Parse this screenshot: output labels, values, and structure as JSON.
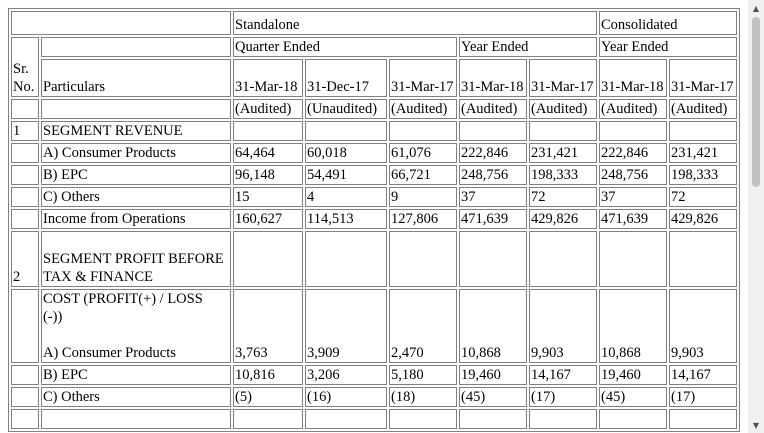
{
  "table": {
    "header": {
      "standalone": "Standalone",
      "consolidated": "Consolidated",
      "sr_line1": "Sr.",
      "sr_line2": "No.",
      "particulars": "Particulars",
      "quarter_ended": "Quarter Ended",
      "year_ended_standalone": "Year Ended",
      "year_ended_consolidated": "Year Ended",
      "dates": [
        "31-Mar-18",
        "31-Dec-17",
        "31-Mar-17",
        "31-Mar-18",
        "31-Mar-17",
        "31-Mar-18",
        "31-Mar-17"
      ],
      "audit": [
        "(Audited)",
        "(Unaudited)",
        "(Audited)",
        "(Audited)",
        "(Audited)",
        "(Audited)",
        "(Audited)"
      ]
    },
    "rows": [
      {
        "sr": "1",
        "particular": "SEGMENT REVENUE",
        "values": [
          "",
          "",
          "",
          "",
          "",
          "",
          ""
        ]
      },
      {
        "sr": "",
        "particular": "A) Consumer Products",
        "values": [
          "64,464",
          "60,018",
          "61,076",
          "222,846",
          "231,421",
          "222,846",
          "231,421"
        ]
      },
      {
        "sr": "",
        "particular": "B) EPC",
        "values": [
          "96,148",
          "54,491",
          "66,721",
          "248,756",
          "198,333",
          "248,756",
          "198,333"
        ]
      },
      {
        "sr": "",
        "particular": "C) Others",
        "values": [
          "15",
          "4",
          "9",
          "37",
          "72",
          "37",
          "72"
        ]
      },
      {
        "sr": "",
        "particular": "Income from Operations",
        "values": [
          "160,627",
          "114,513",
          "127,806",
          "471,639",
          "429,826",
          "471,639",
          "429,826"
        ]
      },
      {
        "sr": "2",
        "particular": "SEGMENT PROFIT BEFORE TAX & FINANCE",
        "values": [
          "",
          "",
          "",
          "",
          "",
          "",
          ""
        ]
      },
      {
        "sr": "",
        "particular": "COST (PROFIT(+) / LOSS (-))",
        "particular2": "A) Consumer Products",
        "values": [
          "3,763",
          "3,909",
          "2,470",
          "10,868",
          "9,903",
          "10,868",
          "9,903"
        ]
      },
      {
        "sr": "",
        "particular": "B) EPC",
        "values": [
          "10,816",
          "3,206",
          "5,180",
          "19,460",
          "14,167",
          "19,460",
          "14,167"
        ]
      },
      {
        "sr": "",
        "particular": "C) Others",
        "values": [
          "(5)",
          "(16)",
          "(18)",
          "(45)",
          "(17)",
          "(45)",
          "(17)"
        ]
      },
      {
        "sr": "",
        "particular": "",
        "values": [
          "",
          "",
          "",
          "",
          "",
          "",
          ""
        ]
      }
    ]
  },
  "scrollbar": {
    "up_icon": "triangle-up-icon",
    "down_icon": "triangle-down-icon",
    "up_glyph": "▲",
    "down_glyph": "▼",
    "thumb_color": "#c1c1c1",
    "track_color": "#f0f0f0"
  }
}
